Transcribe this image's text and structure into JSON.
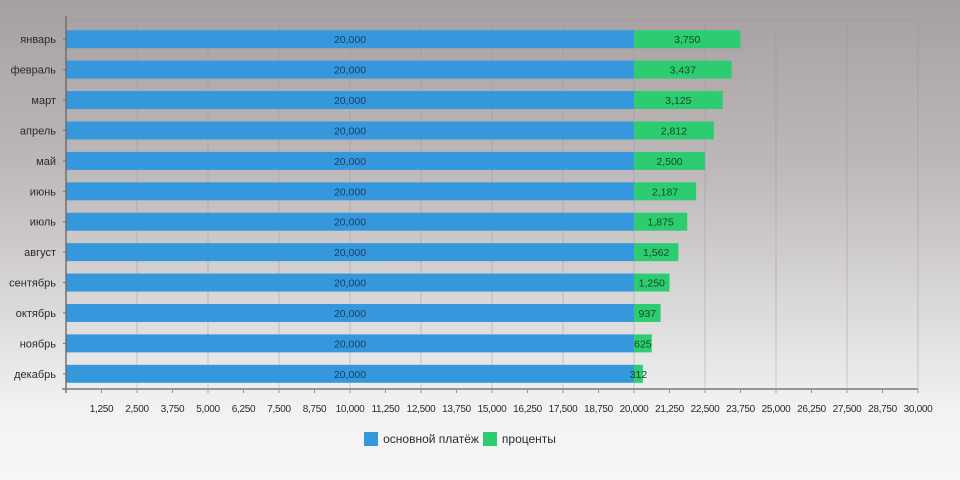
{
  "chart_data": {
    "type": "bar",
    "orientation": "horizontal",
    "stacked": true,
    "title": "",
    "xlabel": "",
    "ylabel": "",
    "categories": [
      "январь",
      "февраль",
      "март",
      "апрель",
      "май",
      "июнь",
      "июль",
      "август",
      "сентябрь",
      "октябрь",
      "ноябрь",
      "декабрь"
    ],
    "series": [
      {
        "name": "основной платёж",
        "color": "#3598dc",
        "values": [
          20000,
          20000,
          20000,
          20000,
          20000,
          20000,
          20000,
          20000,
          20000,
          20000,
          20000,
          20000
        ],
        "labels": [
          "20,000",
          "20,000",
          "20,000",
          "20,000",
          "20,000",
          "20,000",
          "20,000",
          "20,000",
          "20,000",
          "20,000",
          "20,000",
          "20,000"
        ]
      },
      {
        "name": "проценты",
        "color": "#2ecc71",
        "values": [
          3750,
          3437,
          3125,
          2812,
          2500,
          2187,
          1875,
          1562,
          1250,
          937,
          625,
          312
        ],
        "labels": [
          "3,750",
          "3,437",
          "3,125",
          "2,812",
          "2,500",
          "2,187",
          "1,875",
          "1,562",
          "1,250",
          "937",
          "625",
          "312"
        ]
      }
    ],
    "xlim": [
      0,
      30000
    ],
    "x_ticks": [
      "1,250",
      "2,500",
      "3,750",
      "5,000",
      "6,250",
      "7,500",
      "8,750",
      "10,000",
      "11,250",
      "12,500",
      "13,750",
      "15,000",
      "16,250",
      "17,500",
      "18,750",
      "20,000",
      "21,250",
      "22,500",
      "23,750",
      "25,000",
      "26,250",
      "27,500",
      "28,750",
      "30,000"
    ],
    "x_tick_values": [
      1250,
      2500,
      3750,
      5000,
      6250,
      7500,
      8750,
      10000,
      11250,
      12500,
      13750,
      15000,
      16250,
      17500,
      18750,
      20000,
      21250,
      22500,
      23750,
      25000,
      26250,
      27500,
      28750,
      30000
    ],
    "grid_step": 2500,
    "grid": true,
    "legend_position": "bottom-center"
  }
}
